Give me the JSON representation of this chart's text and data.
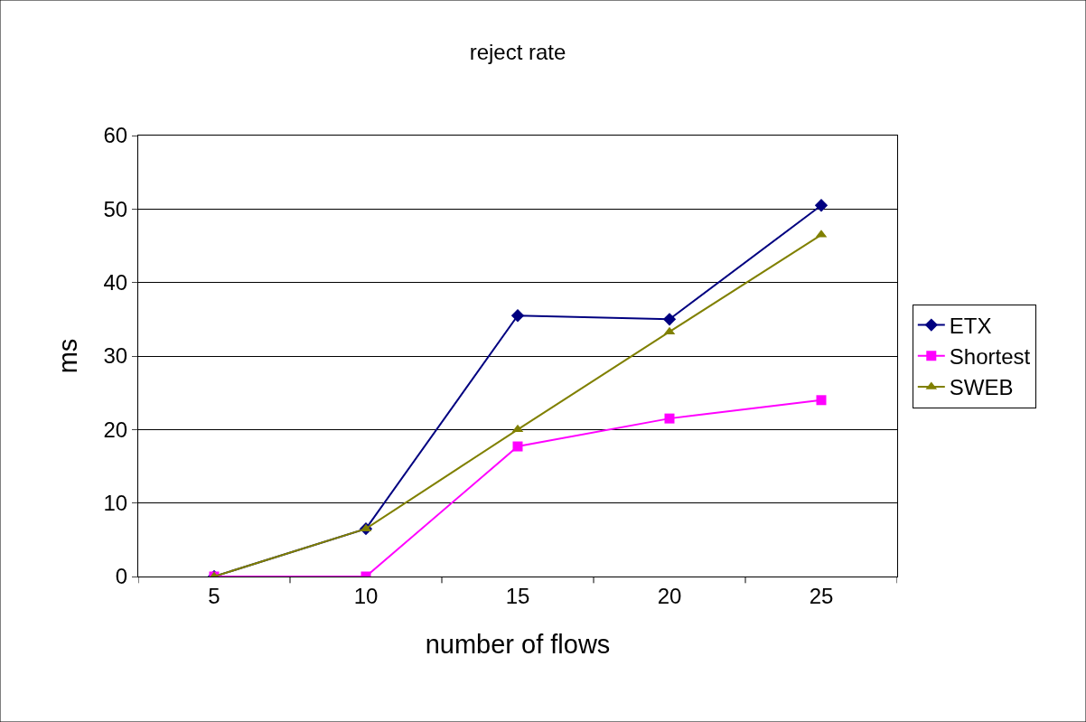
{
  "chart_data": {
    "type": "line",
    "title": "reject rate",
    "xlabel": "number of flows",
    "ylabel": "ms",
    "categories": [
      "5",
      "10",
      "15",
      "20",
      "25"
    ],
    "series": [
      {
        "name": "ETX",
        "color": "#000080",
        "marker": "diamond",
        "values": [
          0,
          6.5,
          35.5,
          35,
          50.5
        ]
      },
      {
        "name": "Shortest",
        "color": "#ff00ff",
        "marker": "square",
        "values": [
          0,
          0,
          17.7,
          21.5,
          24
        ]
      },
      {
        "name": "SWEB",
        "color": "#808000",
        "marker": "triangle",
        "values": [
          0,
          6.5,
          20,
          33.3,
          46.5
        ]
      }
    ],
    "ylim": [
      0,
      60
    ],
    "yticks": [
      0,
      10,
      20,
      30,
      40,
      50,
      60
    ],
    "grid": "y",
    "legend": "right",
    "line_style": "solid"
  }
}
